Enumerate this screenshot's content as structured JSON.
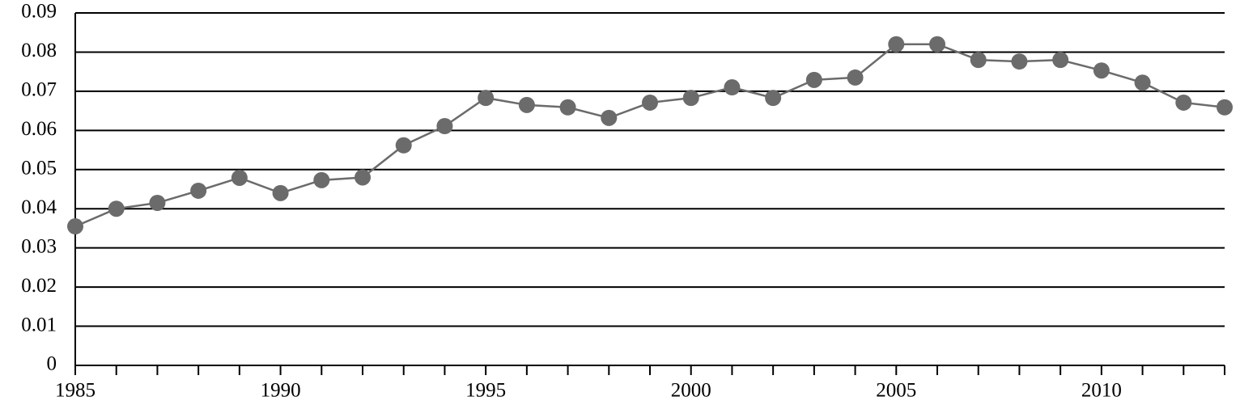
{
  "chart_data": {
    "type": "line",
    "x": [
      1985,
      1986,
      1987,
      1988,
      1989,
      1990,
      1991,
      1992,
      1993,
      1994,
      1995,
      1996,
      1997,
      1998,
      1999,
      2000,
      2001,
      2002,
      2003,
      2004,
      2005,
      2006,
      2007,
      2008,
      2009,
      2010,
      2011,
      2012,
      2013
    ],
    "series": [
      {
        "color": "#6b6b6b",
        "values": [
          0.0355,
          0.04,
          0.0415,
          0.0446,
          0.0479,
          0.044,
          0.0473,
          0.048,
          0.0562,
          0.0611,
          0.0683,
          0.0665,
          0.0659,
          0.0632,
          0.0671,
          0.0683,
          0.071,
          0.0683,
          0.0729,
          0.0735,
          0.082,
          0.082,
          0.078,
          0.0776,
          0.078,
          0.0753,
          0.0722,
          0.0671,
          0.0659
        ]
      }
    ],
    "xlim": [
      1985,
      2013
    ],
    "xticks": [
      1985,
      1990,
      1995,
      2000,
      2005,
      2010
    ],
    "ylim": [
      0,
      0.09
    ],
    "yticks": [
      0,
      0.01,
      0.02,
      0.03,
      0.04,
      0.05,
      0.06,
      0.07,
      0.08,
      0.09
    ],
    "grid": true
  }
}
